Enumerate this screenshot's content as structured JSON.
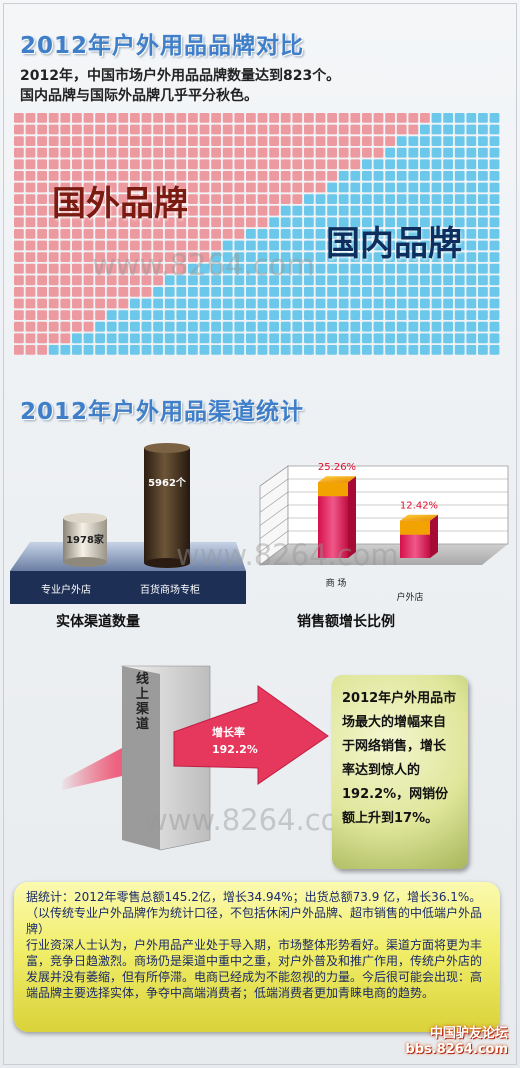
{
  "section1": {
    "title": "2012年户外用品品牌对比",
    "intro_line1": "2012年，中国市场户外用品品牌数量达到823个。",
    "intro_line2": "国内品牌与国际外品牌几乎平分秋色。",
    "foreign_label": "国外品牌",
    "domestic_label": "国内品牌",
    "colors": {
      "foreign": "#ec9aa0",
      "domestic": "#6cc8ea"
    }
  },
  "watermark": "www.8264.com",
  "section2": {
    "title": "2012年户外用品渠道统计",
    "channel_chart": {
      "caption": "实体渠道数量",
      "bars": [
        {
          "label": "专业户外店",
          "value_text": "1978家",
          "value": 1978
        },
        {
          "label": "百货商场专柜",
          "value_text": "5962个",
          "value": 5962
        }
      ]
    },
    "growth_chart": {
      "caption": "销售额增长比例",
      "bars": [
        {
          "label": "商 场",
          "value_text": "25.26%",
          "value": 25.26
        },
        {
          "label": "户外店",
          "value_text": "12.42%",
          "value": 12.42
        }
      ]
    }
  },
  "section3": {
    "online_label": "线上渠道",
    "growth_label": "增长率",
    "growth_value": "192.2%",
    "callout": "2012年户外用品市场最大的增幅来自于网络销售，增长率达到惊人的192.2%，网销份额上升到17%。"
  },
  "note": {
    "p1": "据统计：2012年零售总额145.2亿，增长34.94%；出货总额73.9 亿，增长36.1%。（以传统专业户外品牌作为统计口径，不包括休闲户外品牌、超市销售的中低端户外品牌）",
    "p2": "行业资深人士认为，户外用品产业处于导入期，市场整体形势看好。渠道方面将更为丰富，竞争日趋激烈。商场仍是渠道中重中之重，对户外普及和推广作用，传统户外店的发展并没有萎缩，但有所停滞。电商已经成为不能忽视的力量。今后很可能会出现：高端品牌主要选择实体，争夺中高端消费者；低端消费者更加青睐电商的趋势。"
  },
  "footer": {
    "line1": "中国驴友论坛",
    "line2": "bbs.8264.com"
  }
}
